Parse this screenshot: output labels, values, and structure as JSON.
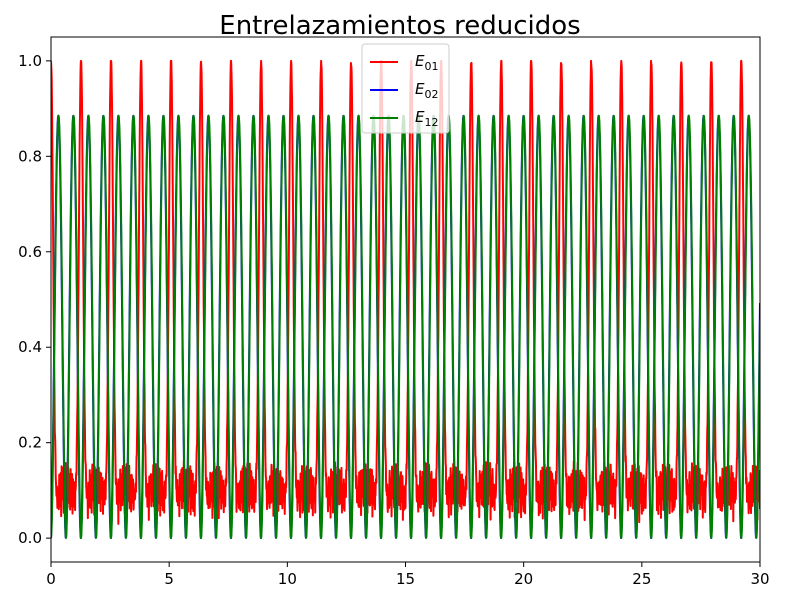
{
  "chart_data": {
    "type": "line",
    "title": "Entrelazamientos reducidos",
    "xlabel": "",
    "ylabel": "",
    "xlim": [
      0,
      30
    ],
    "ylim": [
      -0.05,
      1.05
    ],
    "xticks": [
      0,
      5,
      10,
      15,
      20,
      25,
      30
    ],
    "yticks": [
      0.0,
      0.2,
      0.4,
      0.6,
      0.8,
      1.0
    ],
    "xtick_labels": [
      "0",
      "5",
      "10",
      "15",
      "20",
      "25",
      "30"
    ],
    "ytick_labels": [
      "0.0",
      "0.2",
      "0.4",
      "0.6",
      "0.8",
      "1.0"
    ],
    "grid": false,
    "legend": {
      "placement": "upper-center"
    },
    "series": [
      {
        "name": "E01",
        "label_main": "E",
        "label_sub": "01",
        "color": "#ff0000",
        "period": 1.27,
        "min": 0.03,
        "max": 1.0,
        "note_values": "peaks of 1.0 every ~1.27 units, baseline noisy between 0.03 and 0.24"
      },
      {
        "name": "E02",
        "label_main": "E",
        "label_sub": "02",
        "color": "#0000ff",
        "period": 0.635,
        "min": 0.0,
        "max": 0.885
      },
      {
        "name": "E12",
        "label_main": "E",
        "label_sub": "12",
        "color": "#008000",
        "period": 0.635,
        "min": 0.0,
        "max": 0.885
      }
    ]
  }
}
